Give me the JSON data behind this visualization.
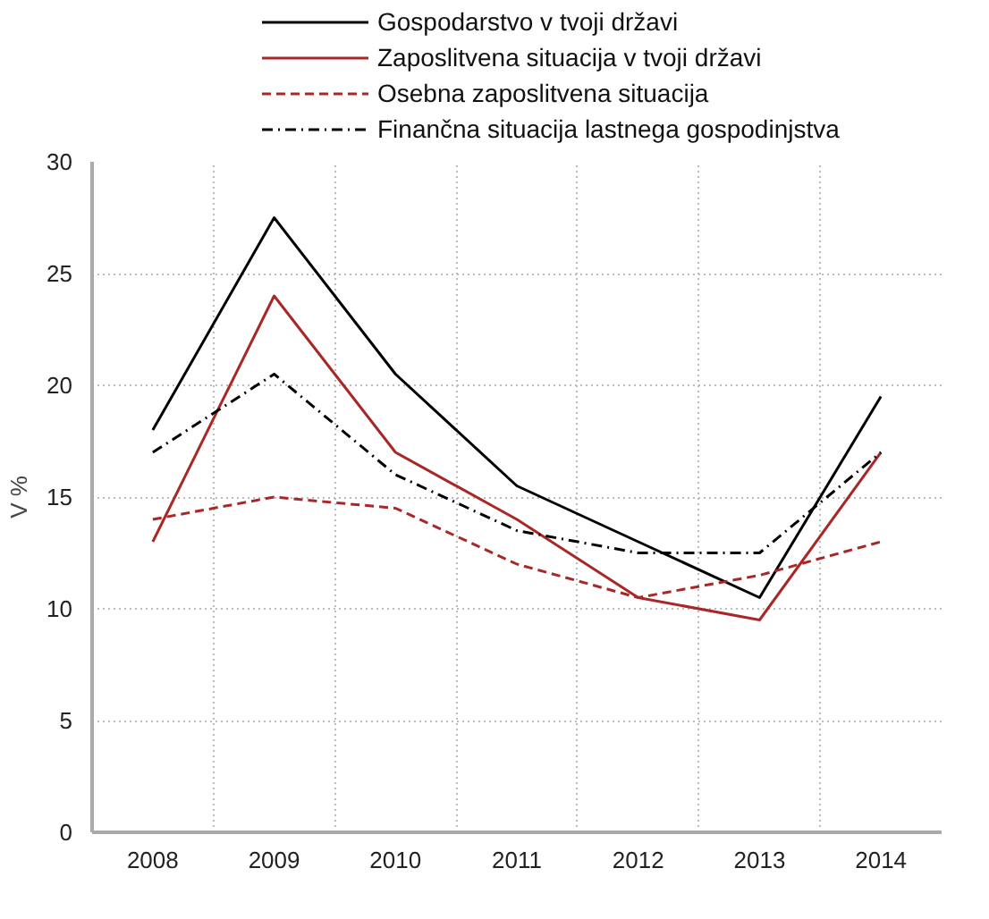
{
  "chart_data": {
    "type": "line",
    "ylabel": "V %",
    "categories": [
      "2008",
      "2009",
      "2010",
      "2011",
      "2012",
      "2013",
      "2014"
    ],
    "series": [
      {
        "name": "Gospodarstvo v tvoji državi",
        "color": "#000000",
        "line_style": "solid",
        "values": [
          18,
          27.5,
          20.5,
          15.5,
          13,
          10.5,
          19.5
        ]
      },
      {
        "name": "Zaposlitvena situacija v tvoji državi",
        "color": "#a82828",
        "line_style": "solid",
        "values": [
          13,
          24,
          17,
          14,
          10.5,
          9.5,
          17
        ]
      },
      {
        "name": "Osebna zaposlitvena situacija",
        "color": "#a82828",
        "line_style": "dashed",
        "values": [
          14,
          15,
          14.5,
          12,
          10.5,
          11.5,
          13
        ]
      },
      {
        "name": "Finančna situacija lastnega gospodinjstva",
        "color": "#000000",
        "line_style": "dashdot",
        "values": [
          17,
          20.5,
          16,
          13.5,
          12.5,
          12.5,
          17
        ]
      }
    ],
    "ylim": [
      0,
      30
    ],
    "yticks": [
      0,
      5,
      10,
      15,
      20,
      25,
      30
    ],
    "grid": true,
    "legend": "top",
    "marker": "none"
  }
}
